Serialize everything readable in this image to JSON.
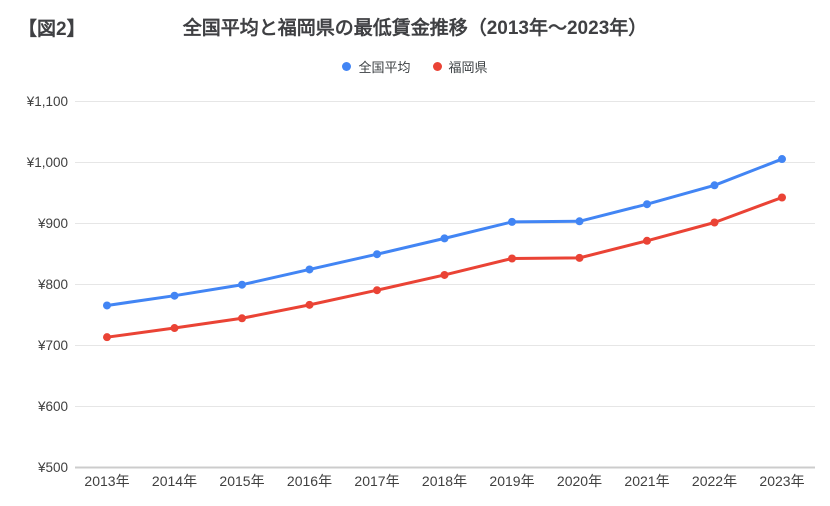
{
  "figure_label": "【図2】",
  "title": "全国平均と福岡県の最低賃金推移（2013年〜2023年）",
  "legend": [
    {
      "label": "全国平均"
    },
    {
      "label": "福岡県"
    }
  ],
  "colors": {
    "background": "#ffffff",
    "grid": "#e6e6e6",
    "axis_line": "#cccccc",
    "axis_text": "#404040",
    "title_text": "#3f4043",
    "series_blue": "#4285F4",
    "series_red": "#EA4335"
  },
  "chart_data": {
    "type": "line",
    "title": "全国平均と福岡県の最低賃金推移（2013年〜2023年）",
    "categories": [
      "2013年",
      "2014年",
      "2015年",
      "2016年",
      "2017年",
      "2018年",
      "2019年",
      "2020年",
      "2021年",
      "2022年",
      "2023年"
    ],
    "series": [
      {
        "name": "全国平均",
        "color": "#4285F4",
        "values": [
          764,
          780,
          798,
          823,
          848,
          874,
          901,
          902,
          930,
          961,
          1004
        ]
      },
      {
        "name": "福岡県",
        "color": "#EA4335",
        "values": [
          712,
          727,
          743,
          765,
          789,
          814,
          841,
          842,
          870,
          900,
          941
        ]
      }
    ],
    "xlabel": "",
    "ylabel": "",
    "ylim": [
      500,
      1100
    ],
    "y_ticks": [
      {
        "value": 500,
        "label": "¥500"
      },
      {
        "value": 600,
        "label": "¥600"
      },
      {
        "value": 700,
        "label": "¥700"
      },
      {
        "value": 800,
        "label": "¥800"
      },
      {
        "value": 900,
        "label": "¥900"
      },
      {
        "value": 1000,
        "label": "¥1,000"
      },
      {
        "value": 1100,
        "label": "¥1,100"
      }
    ],
    "grid": true,
    "legend_position": "top",
    "marker": "circle"
  }
}
